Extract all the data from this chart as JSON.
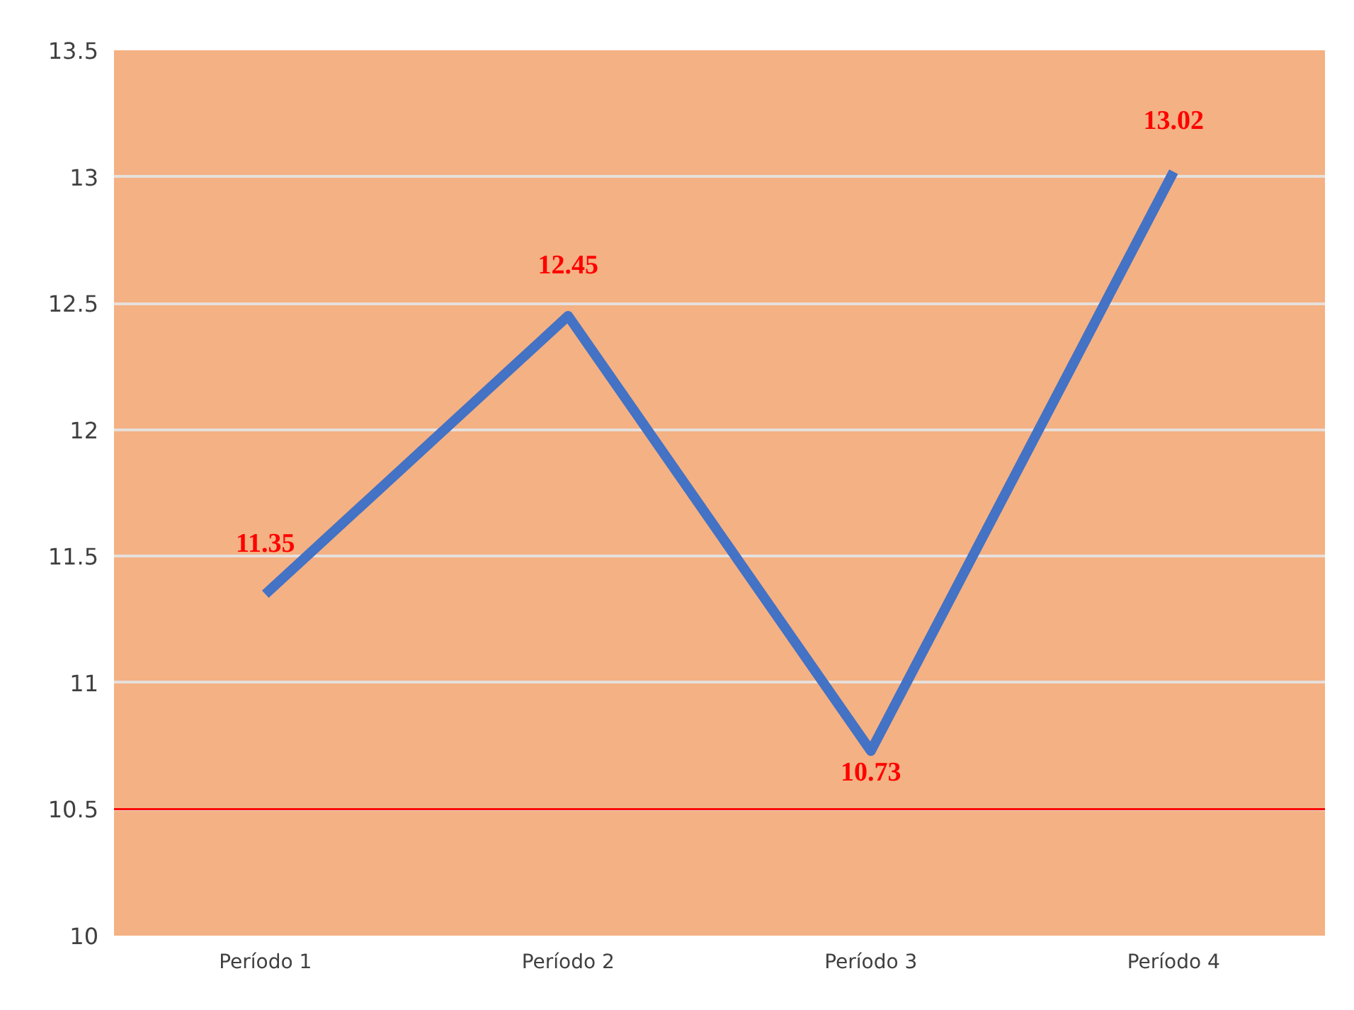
{
  "chart_data": {
    "type": "line",
    "categories": [
      "Período 1",
      "Período 2",
      "Período 3",
      "Período 4"
    ],
    "series": [
      {
        "color": "#4472c4",
        "values": [
          11.35,
          12.45,
          10.73,
          13.02
        ]
      }
    ],
    "ylim": [
      10,
      13.5
    ],
    "yticks": [
      10,
      10.5,
      11,
      11.5,
      12,
      12.5,
      13,
      13.5
    ],
    "grid": "y",
    "data_labels": true,
    "ref_lines": [
      {
        "axis": "y",
        "value": 10.5,
        "color": "#ff0000"
      }
    ]
  }
}
